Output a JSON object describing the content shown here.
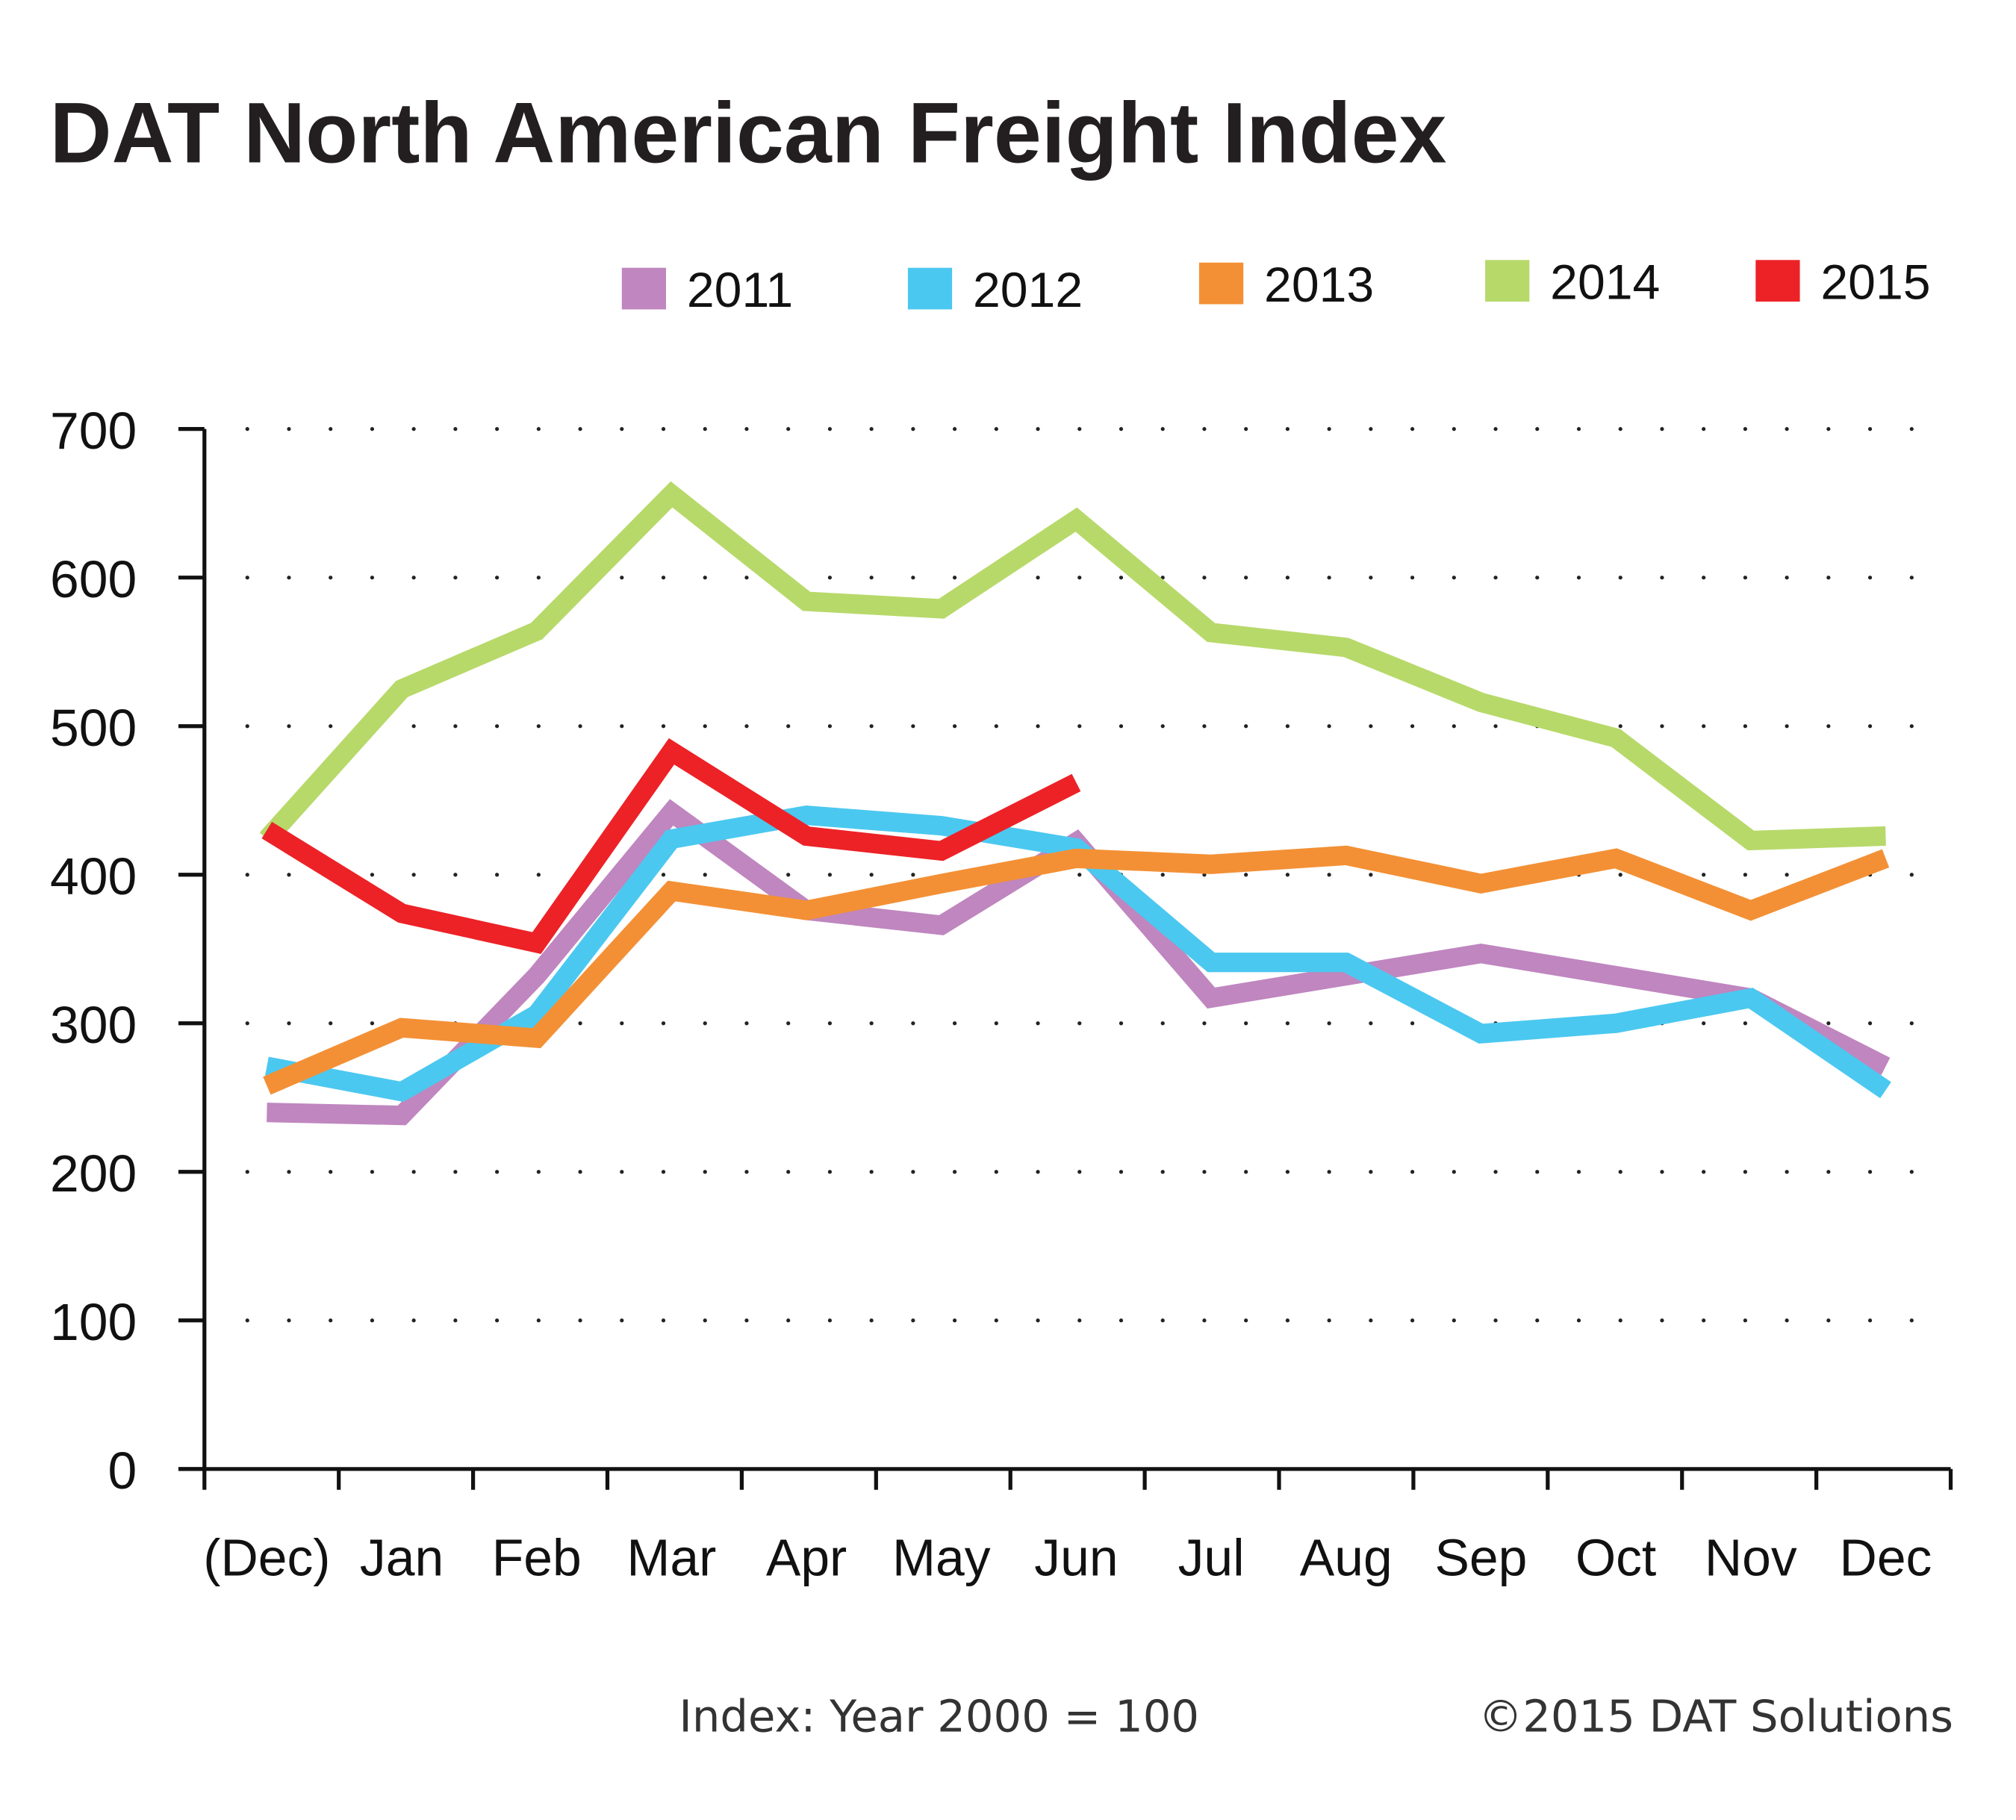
{
  "chart_data": {
    "type": "line",
    "title": "DAT North American Freight Index",
    "categories": [
      "(Dec)",
      "Jan",
      "Feb",
      "Mar",
      "Apr",
      "May",
      "Jun",
      "Jul",
      "Aug",
      "Sep",
      "Oct",
      "Nov",
      "Dec"
    ],
    "ylim": [
      0,
      700
    ],
    "yticks": [
      "0",
      "100",
      "200",
      "300",
      "400",
      "500",
      "600",
      "700"
    ],
    "grid": "dotted horizontal",
    "legend_position": "top-right",
    "series": [
      {
        "name": "2011",
        "color": "#bf86bf",
        "values": [
          240,
          238,
          332,
          442,
          376,
          366,
          422,
          317,
          332,
          347,
          332,
          317,
          271
        ]
      },
      {
        "name": "2012",
        "color": "#4bc8f0",
        "values": [
          271,
          254,
          306,
          424,
          440,
          433,
          418,
          341,
          341,
          293,
          300,
          317,
          255
        ]
      },
      {
        "name": "2013",
        "color": "#f39035",
        "values": [
          258,
          297,
          290,
          389,
          376,
          394,
          411,
          407,
          413,
          394,
          411,
          376,
          411
        ]
      },
      {
        "name": "2014",
        "color": "#b7d96a",
        "values": [
          424,
          525,
          564,
          656,
          584,
          579,
          639,
          563,
          553,
          516,
          492,
          423,
          426
        ]
      },
      {
        "name": "2015",
        "color": "#ec2227",
        "values": [
          430,
          374,
          354,
          483,
          426,
          416,
          462,
          null,
          null,
          null,
          null,
          null,
          null
        ]
      }
    ],
    "footnote": "Index: Year 2000 = 100",
    "copyright": "©2015 DAT Solutions"
  }
}
